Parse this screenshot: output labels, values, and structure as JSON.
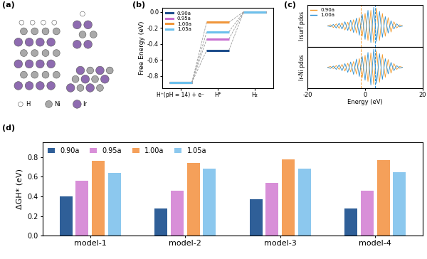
{
  "chart_data": [
    {
      "type": "levels",
      "title": "(b)",
      "y_label": "Free Energy (eV)",
      "categories": [
        "H⁺(pH = 14) + e⁻",
        "H*",
        "H₂"
      ],
      "series": [
        {
          "name": "0.90a",
          "color": "#1f4e8c",
          "values": [
            -0.88,
            -0.48,
            0
          ]
        },
        {
          "name": "0.95a",
          "color": "#c86fd0",
          "values": [
            -0.88,
            -0.34,
            0
          ]
        },
        {
          "name": "1.00a",
          "color": "#f0963a",
          "values": [
            -0.88,
            -0.13,
            0
          ]
        },
        {
          "name": "1.05a",
          "color": "#6cc0ec",
          "values": [
            -0.88,
            -0.25,
            0
          ]
        }
      ],
      "ylim": [
        -0.95,
        0.05
      ],
      "yticks": [
        -0.8,
        -0.6,
        -0.4,
        -0.2,
        {
          "value": 0,
          "label": "0.0"
        }
      ],
      "legend": "upper left",
      "line_style": "dashed"
    },
    {
      "type": "line",
      "title": "(c)",
      "y_label": "Irsurf pdos",
      "x": [
        -13,
        -12,
        -11,
        -10,
        -9,
        -8,
        -7,
        -6,
        -5,
        -4,
        -3,
        -2,
        -1,
        0,
        1,
        2,
        3,
        4,
        5,
        6,
        7,
        8,
        9,
        10,
        11,
        12,
        13
      ],
      "series": [
        {
          "name": "0.90a",
          "color": "#f39a2c",
          "band_center": -1.5,
          "values": [
            0,
            0.05,
            -0.08,
            0.1,
            -0.12,
            0.15,
            -0.2,
            0.18,
            -0.25,
            0.3,
            -0.35,
            0.4,
            -0.5,
            0.6,
            -0.7,
            0.75,
            -0.8,
            0.85,
            -0.7,
            0.6,
            -0.5,
            0.4,
            -0.3,
            0.2,
            -0.1,
            0.05,
            0
          ]
        },
        {
          "name": "1.00a",
          "color": "#2a8fd4",
          "band_center": 3.5,
          "values": [
            0,
            -0.04,
            0.07,
            -0.1,
            0.13,
            -0.15,
            0.2,
            -0.22,
            0.28,
            -0.32,
            0.38,
            -0.45,
            0.55,
            -0.65,
            0.75,
            -0.8,
            0.9,
            -0.75,
            0.7,
            -0.55,
            0.45,
            -0.35,
            0.25,
            -0.15,
            0.1,
            -0.05,
            0
          ]
        }
      ],
      "xlim": [
        -20,
        20
      ],
      "xticks": [
        -20,
        0,
        20
      ],
      "ylim": [
        -1,
        1
      ],
      "yticks": [],
      "legend": "upper left",
      "tick_labels": false,
      "line_style": "dashed"
    },
    {
      "type": "line",
      "y_label": "Ir-Ni pdos",
      "x_label": "Energy (eV)",
      "x": [
        -13,
        -12,
        -11,
        -10,
        -9,
        -8,
        -7,
        -6,
        -5,
        -4,
        -3,
        -2,
        -1,
        0,
        1,
        2,
        3,
        4,
        5,
        6,
        7,
        8,
        9,
        10,
        11,
        12,
        13
      ],
      "series": [
        {
          "name": "0.90a",
          "color": "#f39a2c",
          "band_center": -1.5,
          "values": [
            0,
            0.04,
            -0.06,
            0.09,
            -0.1,
            0.14,
            -0.18,
            0.2,
            -0.22,
            0.28,
            -0.33,
            0.42,
            -0.5,
            0.58,
            -0.68,
            0.7,
            -0.82,
            0.8,
            -0.72,
            0.62,
            -0.48,
            0.38,
            -0.28,
            0.18,
            -0.1,
            0.04,
            0
          ]
        },
        {
          "name": "1.00a",
          "color": "#2a8fd4",
          "band_center": 3.5,
          "values": [
            0,
            -0.05,
            0.06,
            -0.1,
            0.12,
            -0.16,
            0.18,
            -0.24,
            0.26,
            -0.34,
            0.4,
            -0.44,
            0.52,
            -0.62,
            0.72,
            -0.85,
            0.88,
            -0.78,
            0.66,
            -0.58,
            0.42,
            -0.32,
            0.24,
            -0.16,
            0.08,
            -0.04,
            0
          ]
        }
      ],
      "xlim": [
        -20,
        20
      ],
      "xticks": [
        -20,
        0,
        20
      ],
      "ylim": [
        -1,
        1
      ],
      "yticks": [],
      "tick_labels": "x",
      "line_style": "dashed"
    },
    {
      "type": "bar",
      "title": "(d)",
      "y_label": "ΔGH* (eV)",
      "categories": [
        "model-1",
        "model-2",
        "model-3",
        "model-4"
      ],
      "series": [
        {
          "name": "0.90a",
          "color": "#2f5f98",
          "values": [
            0.4,
            0.28,
            0.37,
            0.28
          ]
        },
        {
          "name": "0.95a",
          "color": "#d88fd8",
          "values": [
            0.56,
            0.46,
            0.54,
            0.46
          ]
        },
        {
          "name": "1.00a",
          "color": "#f5a05a",
          "values": [
            0.76,
            0.74,
            0.78,
            0.77
          ]
        },
        {
          "name": "1.05a",
          "color": "#8cc8ee",
          "values": [
            0.64,
            0.68,
            0.68,
            0.65
          ]
        }
      ],
      "ylim": [
        0,
        0.95
      ],
      "yticks": [
        {
          "value": 0,
          "label": "0.0"
        },
        0.2,
        0.4,
        0.6,
        0.8
      ],
      "legend": "upper left"
    }
  ],
  "structure": {
    "label": "(a)",
    "legend": [
      {
        "name": "H",
        "color": "#ffffff"
      },
      {
        "name": "Ni",
        "color": "#a9a9a9"
      },
      {
        "name": "Ir",
        "color": "#8e6bb0"
      }
    ]
  }
}
